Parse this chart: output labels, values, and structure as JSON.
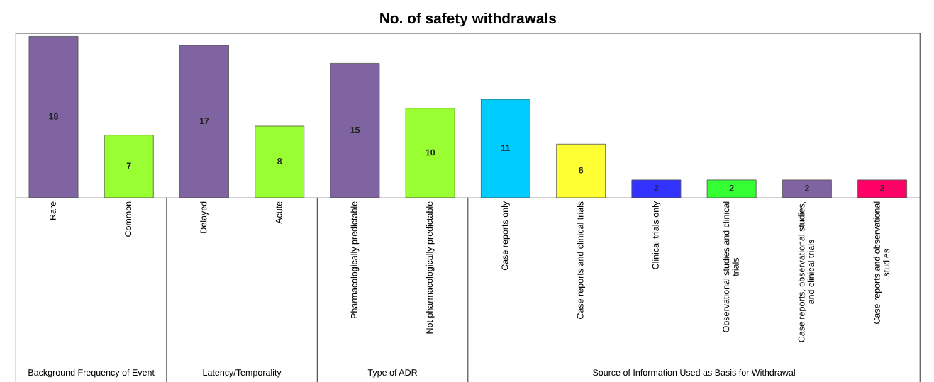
{
  "chart_data": {
    "type": "bar",
    "title": "No. of safety withdrawals",
    "categories": [
      "Rare",
      "Common",
      "Delayed",
      "Acute",
      "Pharmacologically predictable",
      "Not pharmacologically predictable",
      "Case reports only",
      "Case reports and clinical trials",
      "Clinical trials only",
      "Observational studies and clinical\ntrials",
      "Case reports, observational studies,\nand clinical trials",
      "Case reports and observational\nstudies"
    ],
    "values": [
      18,
      7,
      17,
      8,
      15,
      10,
      11,
      6,
      2,
      2,
      2,
      2
    ],
    "colors": [
      "#8064a2",
      "#99ff33",
      "#8064a2",
      "#99ff33",
      "#8064a2",
      "#99ff33",
      "#00ccff",
      "#ffff33",
      "#3333ff",
      "#33ff33",
      "#8064a2",
      "#ff0066"
    ],
    "data_labels": true,
    "annotations": [
      "Background Frequency of Event",
      "Latency/Temporality",
      "Type of ADR",
      "Source of Information Used as Basis for Withdrawal"
    ]
  }
}
